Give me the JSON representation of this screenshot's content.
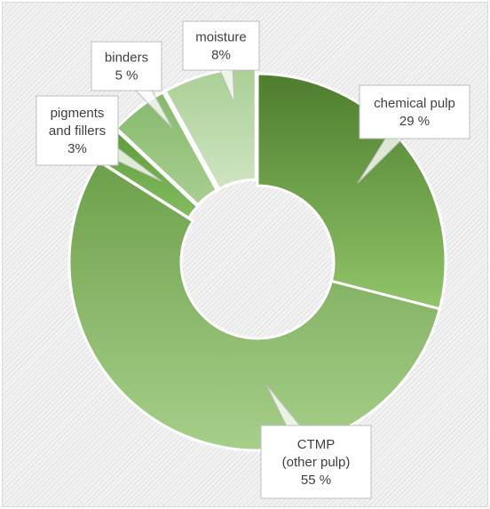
{
  "chart_data": {
    "type": "pie",
    "variant": "donut",
    "title": "",
    "slices": [
      {
        "label": "chemical pulp",
        "value": 29,
        "display": "29 %",
        "color_from": "#4d7d2d",
        "color_to": "#92c46a"
      },
      {
        "label": "CTMP (other pulp)",
        "value": 55,
        "display": "55 %",
        "color_from": "#6da04a",
        "color_to": "#a6cf8a"
      },
      {
        "label": "pigments and fillers",
        "value": 3,
        "display": "3%",
        "color_from": "#5e9a3a",
        "color_to": "#84bd60"
      },
      {
        "label": "binders",
        "value": 5,
        "display": "5 %",
        "color_from": "#86b86c",
        "color_to": "#a8cf92"
      },
      {
        "label": "moisture",
        "value": 8,
        "display": "8%",
        "color_from": "#a9cf95",
        "color_to": "#cfe4c2"
      }
    ],
    "legend": "none",
    "data_labels": "callouts"
  },
  "callouts": [
    {
      "lines": [
        "chemical pulp",
        "29 %"
      ]
    },
    {
      "lines": [
        "CTMP",
        "(other pulp)",
        "55 %"
      ]
    },
    {
      "lines": [
        "pigments",
        "and fillers",
        "3%"
      ]
    },
    {
      "lines": [
        "binders",
        "5 %"
      ]
    },
    {
      "lines": [
        "moisture",
        "8%"
      ]
    }
  ]
}
